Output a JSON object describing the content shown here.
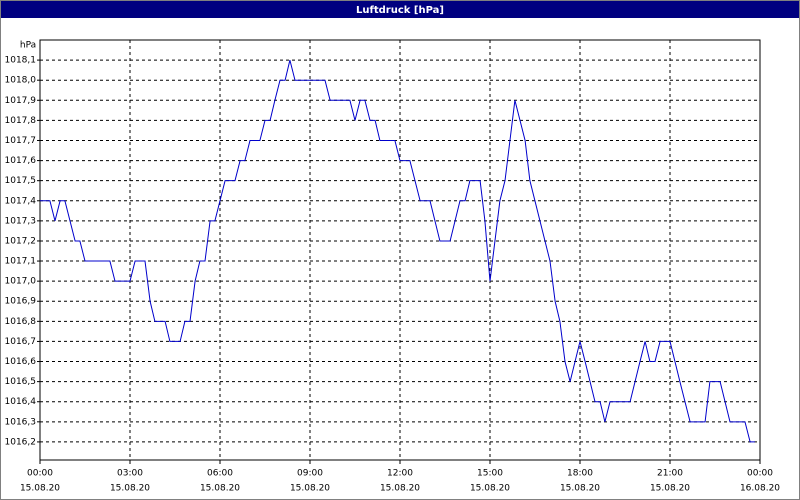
{
  "chart_data": {
    "type": "line",
    "title": "Luftdruck [hPa]",
    "y_unit": "hPa",
    "color": "#0000cc",
    "grid": true,
    "x": [
      0,
      0.33,
      0.5,
      0.67,
      0.83,
      1,
      1.17,
      1.33,
      1.5,
      2.33,
      2.5,
      3,
      3.17,
      3.5,
      3.67,
      3.83,
      4.17,
      4.33,
      4.67,
      4.83,
      5,
      5.17,
      5.33,
      5.5,
      5.67,
      5.83,
      6,
      6.17,
      6.5,
      6.67,
      6.83,
      7,
      7.33,
      7.5,
      7.67,
      7.83,
      8,
      8.17,
      8.33,
      8.5,
      9.5,
      9.67,
      10.33,
      10.5,
      10.67,
      10.83,
      11,
      11.17,
      11.33,
      11.83,
      12,
      12.33,
      12.67,
      13,
      13.33,
      13.67,
      14,
      14.17,
      14.33,
      14.67,
      14.83,
      15,
      15.33,
      15.5,
      15.83,
      16.17,
      16.33,
      17,
      17.17,
      17.33,
      17.5,
      17.67,
      18,
      18.17,
      18.5,
      18.67,
      18.83,
      19,
      19.67,
      20,
      20.17,
      20.33,
      20.5,
      20.67,
      21,
      21.33,
      21.67,
      22.17,
      22.33,
      22.67,
      23,
      23.5,
      23.67,
      23.83
    ],
    "values": [
      1017.4,
      1017.4,
      1017.3,
      1017.4,
      1017.4,
      1017.3,
      1017.2,
      1017.2,
      1017.1,
      1017.1,
      1017.0,
      1017.0,
      1017.1,
      1017.1,
      1016.9,
      1016.8,
      1016.8,
      1016.7,
      1016.7,
      1016.8,
      1016.8,
      1017.0,
      1017.1,
      1017.1,
      1017.3,
      1017.3,
      1017.4,
      1017.5,
      1017.5,
      1017.6,
      1017.6,
      1017.7,
      1017.7,
      1017.8,
      1017.8,
      1017.9,
      1018.0,
      1018.0,
      1018.1,
      1018.0,
      1018.0,
      1017.9,
      1017.9,
      1017.8,
      1017.9,
      1017.9,
      1017.8,
      1017.8,
      1017.7,
      1017.7,
      1017.6,
      1017.6,
      1017.4,
      1017.4,
      1017.2,
      1017.2,
      1017.4,
      1017.4,
      1017.5,
      1017.5,
      1017.3,
      1017.0,
      1017.4,
      1017.5,
      1017.9,
      1017.7,
      1017.5,
      1017.1,
      1016.9,
      1016.8,
      1016.6,
      1016.5,
      1016.7,
      1016.6,
      1016.4,
      1016.4,
      1016.3,
      1016.4,
      1016.4,
      1016.6,
      1016.7,
      1016.6,
      1016.6,
      1016.7,
      1016.7,
      1016.5,
      1016.3,
      1016.3,
      1016.5,
      1016.5,
      1016.3,
      1016.3,
      1016.2,
      1016.2
    ],
    "xlim": [
      0,
      24
    ],
    "xticks": [
      {
        "value": 0,
        "label": "00:00",
        "date": "15.08.20"
      },
      {
        "value": 3,
        "label": "03:00",
        "date": "15.08.20"
      },
      {
        "value": 6,
        "label": "06:00",
        "date": "15.08.20"
      },
      {
        "value": 9,
        "label": "09:00",
        "date": "15.08.20"
      },
      {
        "value": 12,
        "label": "12:00",
        "date": "15.08.20"
      },
      {
        "value": 15,
        "label": "15:00",
        "date": "15.08.20"
      },
      {
        "value": 18,
        "label": "18:00",
        "date": "15.08.20"
      },
      {
        "value": 21,
        "label": "21:00",
        "date": "15.08.20"
      },
      {
        "value": 24,
        "label": "00:00",
        "date": "16.08.20"
      }
    ],
    "ylim": [
      1016.11,
      1018.2
    ],
    "yticks": [
      {
        "value": 1016.2,
        "label": "1016,2"
      },
      {
        "value": 1016.3,
        "label": "1016,3"
      },
      {
        "value": 1016.4,
        "label": "1016,4"
      },
      {
        "value": 1016.5,
        "label": "1016,5"
      },
      {
        "value": 1016.6,
        "label": "1016,6"
      },
      {
        "value": 1016.7,
        "label": "1016,7"
      },
      {
        "value": 1016.8,
        "label": "1016,8"
      },
      {
        "value": 1016.9,
        "label": "1016,9"
      },
      {
        "value": 1017.0,
        "label": "1017,0"
      },
      {
        "value": 1017.1,
        "label": "1017,1"
      },
      {
        "value": 1017.2,
        "label": "1017,2"
      },
      {
        "value": 1017.3,
        "label": "1017,3"
      },
      {
        "value": 1017.4,
        "label": "1017,4"
      },
      {
        "value": 1017.5,
        "label": "1017,5"
      },
      {
        "value": 1017.6,
        "label": "1017,6"
      },
      {
        "value": 1017.7,
        "label": "1017,7"
      },
      {
        "value": 1017.8,
        "label": "1017,8"
      },
      {
        "value": 1017.9,
        "label": "1017,9"
      },
      {
        "value": 1018.0,
        "label": "1018,0"
      },
      {
        "value": 1018.1,
        "label": "1018,1"
      }
    ]
  }
}
